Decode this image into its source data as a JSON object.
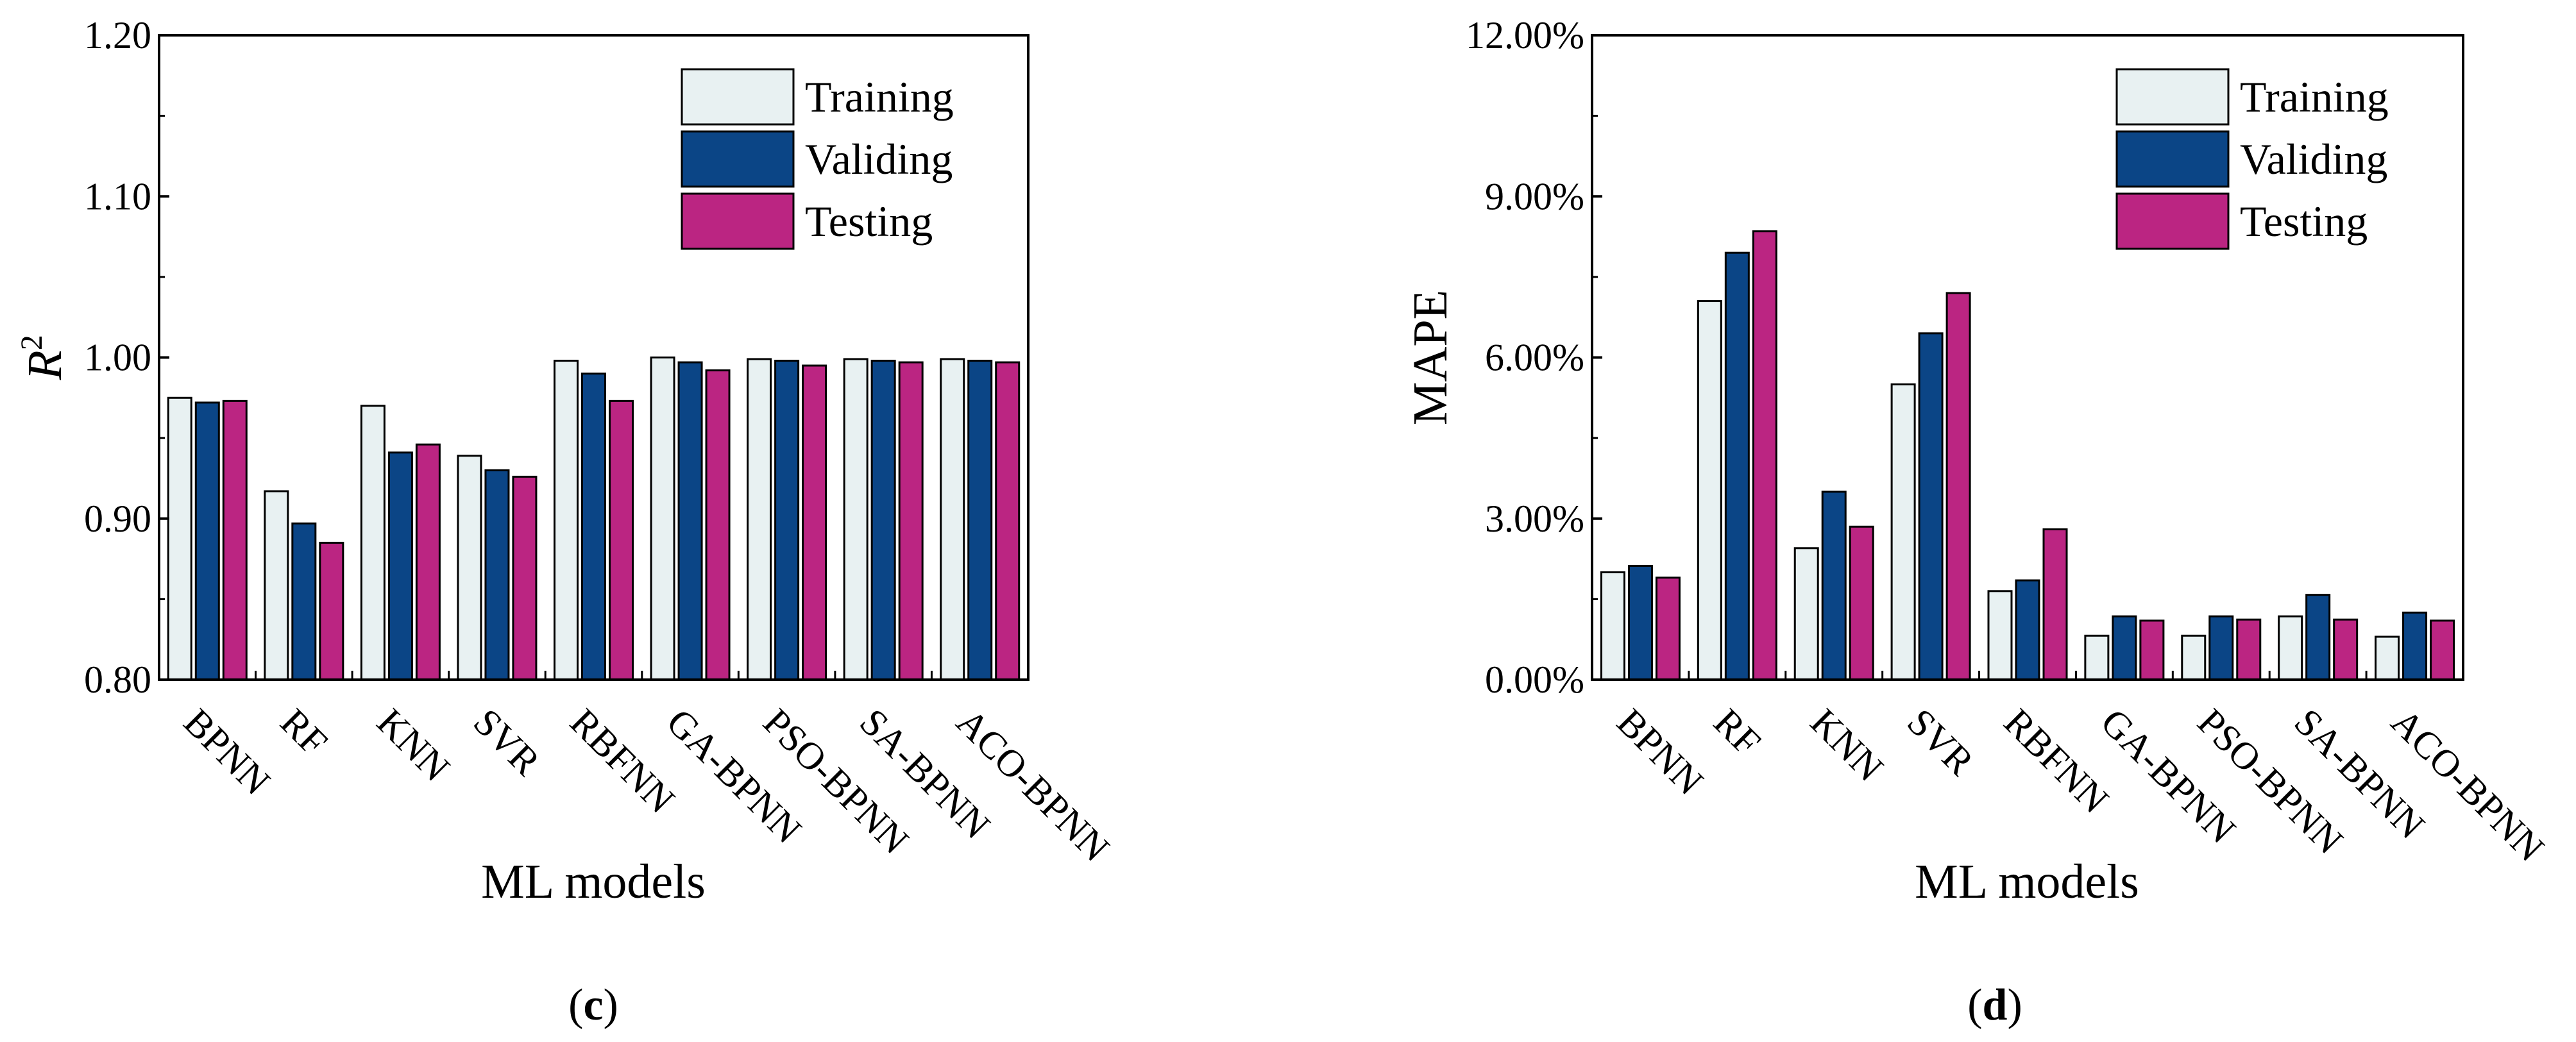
{
  "colors": {
    "training": "#E8F1F2",
    "validing": "#0B4586",
    "testing": "#BB2582",
    "edge": "#000000"
  },
  "chart_data": [
    {
      "type": "bar",
      "panel": "(c)",
      "panel_letter": "c",
      "ylabel_main": "R",
      "ylabel_sup": "2",
      "xlabel": "ML models",
      "ylim": [
        0.8,
        1.2
      ],
      "yticks": [
        0.8,
        0.9,
        1.0,
        1.1,
        1.2
      ],
      "ytick_labels": [
        "0.80",
        "0.90",
        "1.00",
        "1.10",
        "1.20"
      ],
      "legend_position": "top-right",
      "categories": [
        "BPNN",
        "RF",
        "KNN",
        "SVR",
        "RBFNN",
        "GA-BPNN",
        "PSO-BPNN",
        "SA-BPNN",
        "ACO-BPNN"
      ],
      "series": [
        {
          "name": "Training",
          "key": "training",
          "values": [
            0.975,
            0.917,
            0.97,
            0.939,
            0.998,
            1.0,
            0.999,
            0.999,
            0.999
          ]
        },
        {
          "name": "Validing",
          "key": "validing",
          "values": [
            0.972,
            0.897,
            0.941,
            0.93,
            0.99,
            0.997,
            0.998,
            0.998,
            0.998
          ]
        },
        {
          "name": "Testing",
          "key": "testing",
          "values": [
            0.973,
            0.885,
            0.946,
            0.926,
            0.973,
            0.992,
            0.995,
            0.997,
            0.997
          ]
        }
      ]
    },
    {
      "type": "bar",
      "panel": "(d)",
      "panel_letter": "d",
      "ylabel_main": "MAPE",
      "ylabel_sup": "",
      "xlabel": "ML models",
      "ylim": [
        0.0,
        12.0
      ],
      "yticks": [
        0,
        3,
        6,
        9,
        12
      ],
      "ytick_labels": [
        "0.00%",
        "3.00%",
        "6.00%",
        "9.00%",
        "12.00%"
      ],
      "legend_position": "top-right",
      "categories": [
        "BPNN",
        "RF",
        "KNN",
        "SVR",
        "RBFNN",
        "GA-BPNN",
        "PSO-BPNN",
        "SA-BPNN",
        "ACO-BPNN"
      ],
      "series": [
        {
          "name": "Training",
          "key": "training",
          "values": [
            2.0,
            7.05,
            2.45,
            5.5,
            1.65,
            0.82,
            0.82,
            1.18,
            0.8
          ]
        },
        {
          "name": "Validing",
          "key": "validing",
          "values": [
            2.12,
            7.95,
            3.5,
            6.45,
            1.85,
            1.18,
            1.18,
            1.58,
            1.25
          ]
        },
        {
          "name": "Testing",
          "key": "testing",
          "values": [
            1.9,
            8.35,
            2.85,
            7.2,
            2.8,
            1.1,
            1.12,
            1.12,
            1.1
          ]
        }
      ]
    }
  ]
}
